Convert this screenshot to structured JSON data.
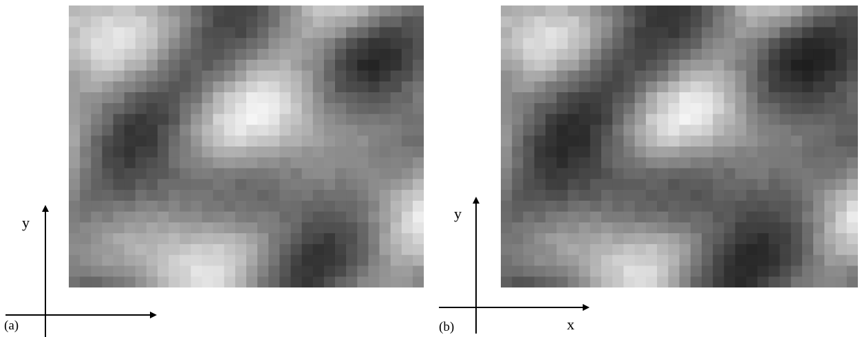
{
  "figure": {
    "panels": [
      {
        "id": "a",
        "label": "(a)",
        "axis_labels": {
          "y": "y",
          "x": ""
        },
        "texture": {
          "cols": 32,
          "rows": 26,
          "seed": 11,
          "gamma": 1.0
        }
      },
      {
        "id": "b",
        "label": "(b)",
        "axis_labels": {
          "y": "y",
          "x": "x"
        },
        "texture": {
          "cols": 32,
          "rows": 26,
          "seed": 11,
          "gamma": 1.25
        }
      }
    ],
    "colors": {
      "axis": "#000000",
      "background": "#ffffff"
    }
  }
}
